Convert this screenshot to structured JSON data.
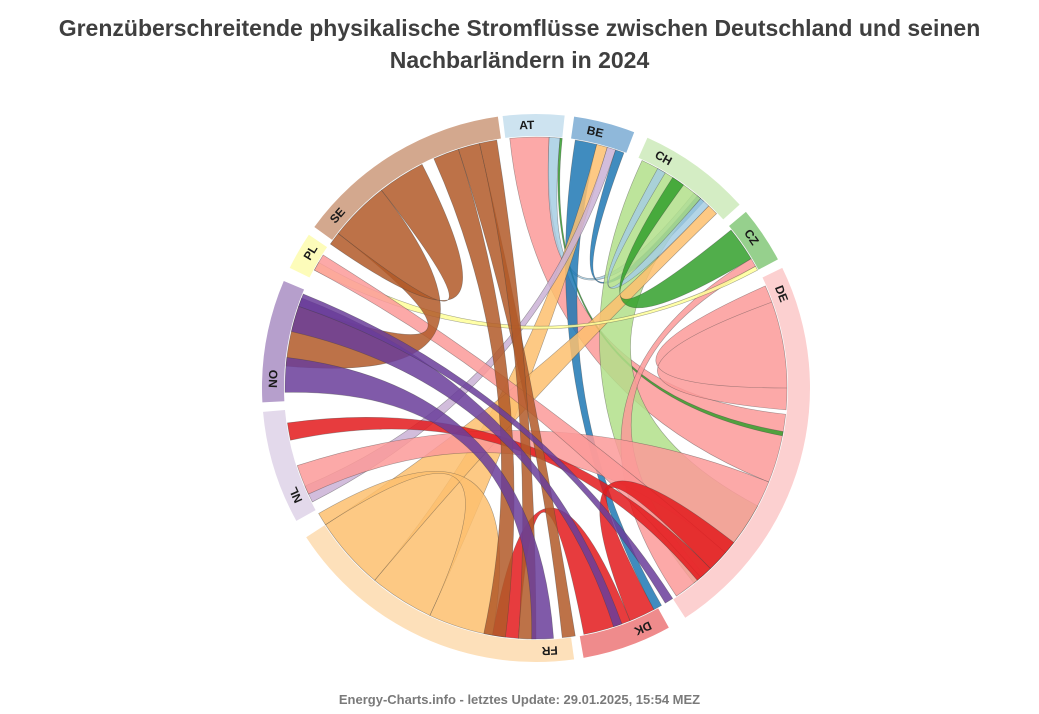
{
  "title_line1": "Grenzüberschreitende physikalische Stromflüsse zwischen Deutschland und seinen",
  "title_line2": "Nachbarländern in 2024",
  "footer": "Energy-Charts.info - letztes Update: 29.01.2025, 15:54 MEZ",
  "chart_data": {
    "type": "chord",
    "title": "Grenzüberschreitende physikalische Stromflüsse zwischen Deutschland und seinen Nachbarländern in 2024",
    "groups": [
      {
        "label": "AT",
        "start": -7,
        "end": 6,
        "color": "#cde3f0",
        "ribbon": "#a6cee3"
      },
      {
        "label": "BE",
        "start": 8,
        "end": 21,
        "color": "#8fb8da",
        "ribbon": "#1f78b4"
      },
      {
        "label": "CH",
        "start": 24,
        "end": 48,
        "color": "#d4edc4",
        "ribbon": "#b2df8a"
      },
      {
        "label": "CZ",
        "start": 50,
        "end": 62,
        "color": "#96d08d",
        "ribbon": "#33a02c"
      },
      {
        "label": "DE",
        "start": 64,
        "end": 147,
        "color": "#fcd0d0",
        "ribbon": "#fb9a99"
      },
      {
        "label": "DK",
        "start": 151,
        "end": 170,
        "color": "#ef8b8c",
        "ribbon": "#e31a1c"
      },
      {
        "label": "FR",
        "start": 172,
        "end": 237,
        "color": "#fde0ba",
        "ribbon": "#fdbf6f"
      },
      {
        "label": "NL",
        "start": 241,
        "end": 265,
        "color": "#e3d9eb",
        "ribbon": "#cab2d6"
      },
      {
        "label": "NO",
        "start": 267,
        "end": 293,
        "color": "#b69fcc",
        "ribbon": "#6a3d9a"
      },
      {
        "label": "PL",
        "start": 296,
        "end": 304,
        "color": "#fdfcba",
        "ribbon": "#ffff99"
      },
      {
        "label": "SE",
        "start": 306,
        "end": 352,
        "color": "#d3a88e",
        "ribbon": "#b15928"
      }
    ],
    "ribbons": [
      {
        "color": "#fb9a99",
        "a": [
          -6,
          3
        ],
        "b": [
          96,
          112
        ]
      },
      {
        "color": "#a6cee3",
        "a": [
          3,
          5.5
        ],
        "b": [
          39,
          41
        ]
      },
      {
        "color": "#33a02c",
        "a": [
          5.5,
          6
        ],
        "b": [
          100,
          101
        ]
      },
      {
        "color": "#1f78b4",
        "a": [
          9,
          14
        ],
        "b": [
          150,
          152
        ]
      },
      {
        "color": "#fdbf6f",
        "a": [
          14,
          16.5
        ],
        "b": [
          205,
          220
        ]
      },
      {
        "color": "#cab2d6",
        "a": [
          16.5,
          18.5
        ],
        "b": [
          243,
          247
        ]
      },
      {
        "color": "#1f78b4",
        "a": [
          18.5,
          20.5
        ],
        "b": [
          40,
          42
        ]
      },
      {
        "color": "#b2df8a",
        "a": [
          25,
          41
        ],
        "b": [
          118,
          141
        ]
      },
      {
        "color": "#a6cee3",
        "a": [
          41,
          43.5
        ],
        "b": [
          29,
          31
        ]
      },
      {
        "color": "#fdbf6f",
        "a": [
          43.5,
          46
        ],
        "b": [
          220,
          237
        ]
      },
      {
        "color": "#33a02c",
        "a": [
          51,
          59
        ],
        "b": [
          33,
          36
        ]
      },
      {
        "color": "#fb9a99",
        "a": [
          59,
          61
        ],
        "b": [
          138,
          146
        ]
      },
      {
        "color": "#ffff99",
        "a": [
          61,
          62
        ],
        "b": [
          298,
          300
        ]
      },
      {
        "color": "#fb9a99",
        "a": [
          66,
          95
        ],
        "b": [
          70,
          90
        ]
      },
      {
        "color": "#fb9a99",
        "a": [
          112,
          131
        ],
        "b": [
          245,
          252
        ]
      },
      {
        "color": "#fb9a99",
        "a": [
          131,
          139
        ],
        "b": [
          298,
          302
        ]
      },
      {
        "color": "#e31a1c",
        "a": [
          152,
          158
        ],
        "b": [
          128,
          136
        ]
      },
      {
        "color": "#e31a1c",
        "a": [
          158,
          169
        ],
        "b": [
          184,
          190
        ]
      },
      {
        "color": "#e31a1c",
        "a": [
          258,
          262
        ],
        "b": [
          136,
          140
        ]
      },
      {
        "color": "#fdbf6f",
        "a": [
          190,
          205
        ],
        "b": [
          237,
          240
        ]
      },
      {
        "color": "#b15928",
        "a": [
          308,
          322
        ],
        "b": [
          275,
          289
        ]
      },
      {
        "color": "#b15928",
        "a": [
          322,
          333
        ],
        "b": [
          305,
          308
        ]
      },
      {
        "color": "#b15928",
        "a": [
          336,
          342
        ],
        "b": [
          187,
          192
        ]
      },
      {
        "color": "#b15928",
        "a": [
          342,
          347
        ],
        "b": [
          171,
          174
        ]
      },
      {
        "color": "#b15928",
        "a": [
          347,
          351
        ],
        "b": [
          180,
          184
        ]
      },
      {
        "color": "#6a3d9a",
        "a": [
          269,
          277
        ],
        "b": [
          176,
          181
        ]
      },
      {
        "color": "#6a3d9a",
        "a": [
          283,
          291
        ],
        "b": [
          160,
          162
        ]
      },
      {
        "color": "#6a3d9a",
        "a": [
          289,
          292
        ],
        "b": [
          147,
          149
        ]
      }
    ]
  }
}
